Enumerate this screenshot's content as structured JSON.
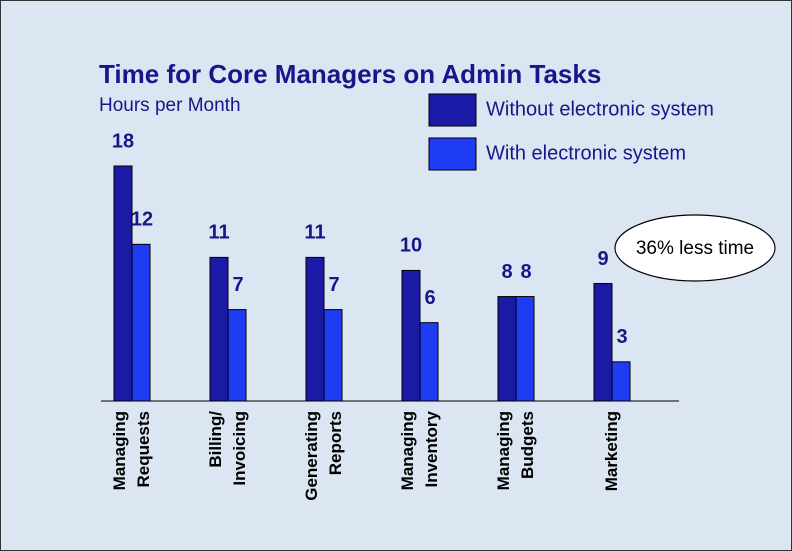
{
  "chart_data": {
    "type": "bar",
    "title": "Time for Core Managers on Admin Tasks",
    "subtitle": "Hours per Month",
    "annotation": "36% less time",
    "categories": [
      "Managing\nRequests",
      "Billing/\nInvoicing",
      "Generating\nReports",
      "Managing\nInventory",
      "Managing\nBudgets",
      "Marketing"
    ],
    "series": [
      {
        "name": "Without electronic system",
        "color": "#1a1aa6",
        "values": [
          18,
          11,
          11,
          10,
          8,
          9
        ]
      },
      {
        "name": "With electronic system",
        "color": "#1f3cf5",
        "values": [
          12,
          7,
          7,
          6,
          8,
          3
        ]
      }
    ],
    "ylim": [
      0,
      18
    ]
  }
}
